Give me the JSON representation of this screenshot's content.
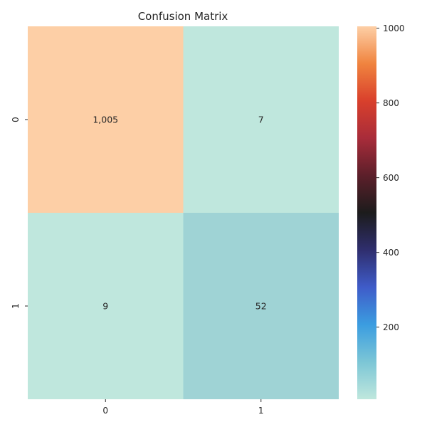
{
  "chart_data": {
    "type": "heatmap",
    "title": "Confusion Matrix",
    "xlabel": "",
    "ylabel": "",
    "x_categories": [
      "0",
      "1"
    ],
    "y_categories": [
      "0",
      "1"
    ],
    "values": [
      [
        1005,
        7
      ],
      [
        9,
        52
      ]
    ],
    "cell_labels": [
      [
        "1,005",
        "7"
      ],
      [
        "9",
        "52"
      ]
    ],
    "colormap": "icefire",
    "colorbar": {
      "min": 7,
      "max": 1005,
      "ticks": [
        200,
        400,
        600,
        800,
        1000
      ],
      "tick_labels": [
        "200",
        "400",
        "600",
        "800",
        "1000"
      ]
    },
    "colors": {
      "cell_0_0": "#fdcfa6",
      "cell_0_1": "#bfe7dd",
      "cell_1_0": "#bfe7dd",
      "cell_1_1": "#9fd3d5"
    },
    "colorbar_stops": [
      "#bfe7dd",
      "#7cc6d6",
      "#3b9de0",
      "#3f5cc9",
      "#2f2e6e",
      "#1c1c1c",
      "#5c1f2a",
      "#a82c3a",
      "#d9402c",
      "#f0843f",
      "#fdcfa6"
    ]
  }
}
